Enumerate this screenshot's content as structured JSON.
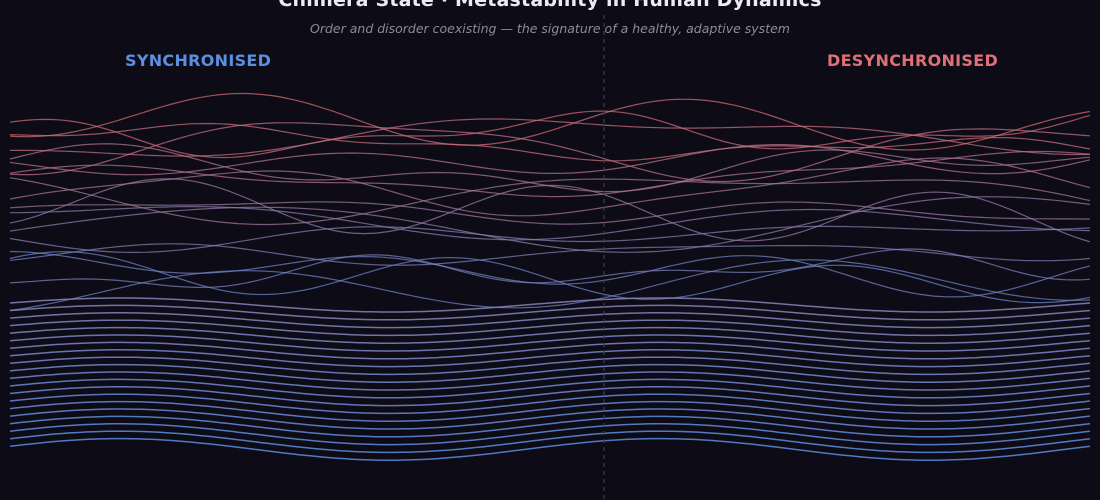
{
  "header": {
    "title": "Chimera State · Metastability in Human Dynamics",
    "subtitle": "Order and disorder coexisting — the signature of a healthy, adaptive system"
  },
  "regions": {
    "left_label": "SYNCHRONISED",
    "right_label": "DESYNCHRONISED"
  },
  "colors": {
    "background": "#0d0c16",
    "synchronised": "#5b8fe0",
    "desynchronised": "#e07078",
    "divider": "#3a3a4e"
  },
  "oscillators": {
    "count": 40,
    "synchronised_count": 20,
    "desynchronised_count": 20
  }
}
